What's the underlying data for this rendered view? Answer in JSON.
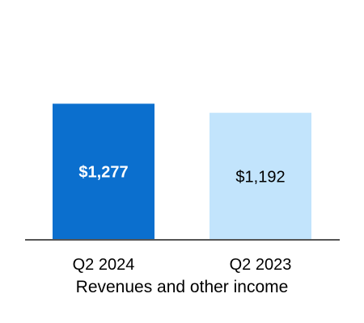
{
  "colors": {
    "bar_q2_2024": "#0b6fce",
    "bar_q2_2023": "#c2e4fc",
    "label_q2_2024": "#ffffff",
    "label_q2_2023": "#000000",
    "axis_line": "#555555"
  },
  "chart_data": {
    "type": "bar",
    "categories": [
      "Q2 2024",
      "Q2 2023"
    ],
    "values": [
      1277,
      1192
    ],
    "value_labels": [
      "$1,277",
      "$1,192"
    ],
    "xlabel": "Revenues and other income",
    "grid": false,
    "legend": "none"
  }
}
